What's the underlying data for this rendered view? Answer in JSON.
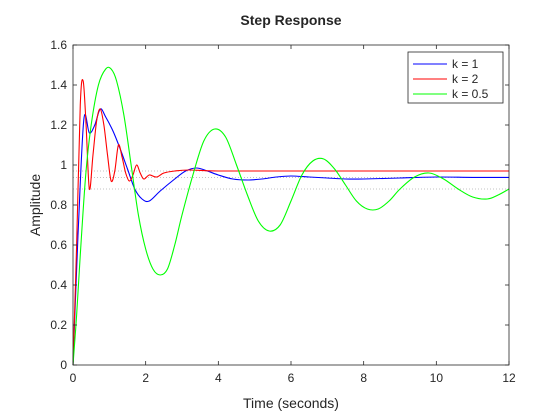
{
  "chart_data": {
    "type": "line",
    "title": "Step Response",
    "xlabel": "Time (seconds)",
    "ylabel": "Amplitude",
    "xlim": [
      0,
      12
    ],
    "ylim": [
      0,
      1.6
    ],
    "xticks": [
      "0",
      "2",
      "4",
      "6",
      "8",
      "10",
      "12"
    ],
    "yticks": [
      "0",
      "0.2",
      "0.4",
      "0.6",
      "0.8",
      "1",
      "1.2",
      "1.4",
      "1.6"
    ],
    "grid": false,
    "legend_position": "top-right",
    "series": [
      {
        "name": "k = 1",
        "color": "#0000ff",
        "final_value": 0.938,
        "points": [
          [
            0,
            0
          ],
          [
            0.05,
            0.25
          ],
          [
            0.15,
            0.7
          ],
          [
            0.3,
            1.23
          ],
          [
            0.45,
            1.16
          ],
          [
            0.6,
            1.2
          ],
          [
            0.75,
            1.28
          ],
          [
            0.9,
            1.24
          ],
          [
            1.1,
            1.17
          ],
          [
            1.3,
            1.08
          ],
          [
            1.5,
            0.98
          ],
          [
            1.7,
            0.88
          ],
          [
            1.9,
            0.83
          ],
          [
            2.1,
            0.82
          ],
          [
            2.4,
            0.87
          ],
          [
            2.8,
            0.93
          ],
          [
            3.1,
            0.97
          ],
          [
            3.4,
            0.985
          ],
          [
            3.7,
            0.97
          ],
          [
            4.0,
            0.95
          ],
          [
            4.4,
            0.93
          ],
          [
            4.8,
            0.925
          ],
          [
            5.2,
            0.93
          ],
          [
            5.6,
            0.94
          ],
          [
            6.0,
            0.945
          ],
          [
            6.5,
            0.94
          ],
          [
            7.0,
            0.935
          ],
          [
            7.5,
            0.93
          ],
          [
            8.0,
            0.93
          ],
          [
            9.0,
            0.935
          ],
          [
            10.0,
            0.94
          ],
          [
            11.0,
            0.938
          ],
          [
            12.0,
            0.938
          ]
        ]
      },
      {
        "name": "k = 2",
        "color": "#ff0000",
        "final_value": 0.97,
        "points": [
          [
            0,
            0
          ],
          [
            0.1,
            0.6
          ],
          [
            0.2,
            1.3
          ],
          [
            0.28,
            1.42
          ],
          [
            0.36,
            1.2
          ],
          [
            0.45,
            0.88
          ],
          [
            0.55,
            1.05
          ],
          [
            0.65,
            1.22
          ],
          [
            0.75,
            1.28
          ],
          [
            0.85,
            1.2
          ],
          [
            0.95,
            1.05
          ],
          [
            1.05,
            0.92
          ],
          [
            1.15,
            0.97
          ],
          [
            1.25,
            1.1
          ],
          [
            1.35,
            1.04
          ],
          [
            1.45,
            0.96
          ],
          [
            1.55,
            0.92
          ],
          [
            1.65,
            0.95
          ],
          [
            1.75,
            1.0
          ],
          [
            1.85,
            0.96
          ],
          [
            1.95,
            0.93
          ],
          [
            2.1,
            0.95
          ],
          [
            2.3,
            0.94
          ],
          [
            2.5,
            0.96
          ],
          [
            2.8,
            0.97
          ],
          [
            3.2,
            0.975
          ],
          [
            4.0,
            0.97
          ],
          [
            6.0,
            0.97
          ],
          [
            9.0,
            0.97
          ],
          [
            12.0,
            0.97
          ]
        ]
      },
      {
        "name": "k = 0.5",
        "color": "#00ff00",
        "final_value": 0.88,
        "points": [
          [
            0,
            0
          ],
          [
            0.1,
            0.25
          ],
          [
            0.2,
            0.55
          ],
          [
            0.35,
            0.95
          ],
          [
            0.5,
            1.2
          ],
          [
            0.7,
            1.4
          ],
          [
            0.9,
            1.48
          ],
          [
            1.05,
            1.48
          ],
          [
            1.2,
            1.42
          ],
          [
            1.4,
            1.25
          ],
          [
            1.6,
            1.0
          ],
          [
            1.8,
            0.75
          ],
          [
            2.0,
            0.58
          ],
          [
            2.2,
            0.48
          ],
          [
            2.4,
            0.45
          ],
          [
            2.6,
            0.48
          ],
          [
            2.8,
            0.6
          ],
          [
            3.0,
            0.75
          ],
          [
            3.3,
            0.95
          ],
          [
            3.6,
            1.12
          ],
          [
            3.9,
            1.18
          ],
          [
            4.2,
            1.14
          ],
          [
            4.5,
            1.0
          ],
          [
            4.8,
            0.85
          ],
          [
            5.1,
            0.72
          ],
          [
            5.4,
            0.67
          ],
          [
            5.7,
            0.7
          ],
          [
            6.0,
            0.82
          ],
          [
            6.3,
            0.95
          ],
          [
            6.6,
            1.02
          ],
          [
            6.9,
            1.03
          ],
          [
            7.2,
            0.98
          ],
          [
            7.5,
            0.9
          ],
          [
            7.8,
            0.82
          ],
          [
            8.1,
            0.78
          ],
          [
            8.4,
            0.78
          ],
          [
            8.7,
            0.82
          ],
          [
            9.0,
            0.88
          ],
          [
            9.4,
            0.94
          ],
          [
            9.8,
            0.96
          ],
          [
            10.2,
            0.93
          ],
          [
            10.6,
            0.88
          ],
          [
            11.0,
            0.84
          ],
          [
            11.4,
            0.83
          ],
          [
            11.7,
            0.85
          ],
          [
            12.0,
            0.88
          ]
        ]
      }
    ]
  }
}
